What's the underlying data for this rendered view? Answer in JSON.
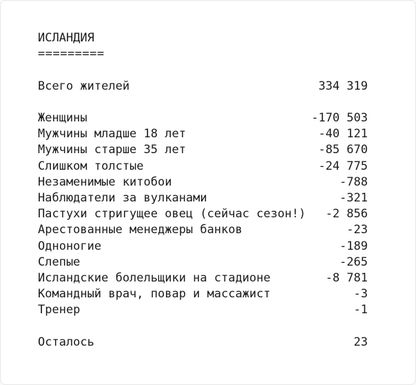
{
  "note": {
    "title": "ИСЛАНДИЯ",
    "underline": "=========",
    "total": {
      "label": "Всего жителей",
      "value": "334 319"
    },
    "deductions": [
      {
        "label": "Женщины",
        "value": "-170 503"
      },
      {
        "label": "Мужчины младше 18 лет",
        "value": "-40 121"
      },
      {
        "label": "Мужчины старше 35 лет",
        "value": "-85 670"
      },
      {
        "label": "Слишком толстые",
        "value": "-24 775"
      },
      {
        "label": "Незаменимые китобои",
        "value": "-788"
      },
      {
        "label": "Наблюдатели за вулканами",
        "value": "-321"
      },
      {
        "label": "Пастухи стригущее овец (сейчас сезон!)",
        "value": "-2 856"
      },
      {
        "label": "Арестованные менеджеры банков",
        "value": "-23"
      },
      {
        "label": "Одноногие",
        "value": "-189"
      },
      {
        "label": "Слепые",
        "value": "-265"
      },
      {
        "label": "Исландские болельщики на стадионе",
        "value": "-8 781"
      },
      {
        "label": "Командный врач, повар и массажист",
        "value": "-3"
      },
      {
        "label": "Тренер",
        "value": "-1"
      }
    ],
    "remainder": {
      "label": "Осталось",
      "value": "23"
    },
    "colors": {
      "text": "#1c1c1c",
      "background": "#ffffff",
      "border": "#e6e6e6"
    }
  }
}
